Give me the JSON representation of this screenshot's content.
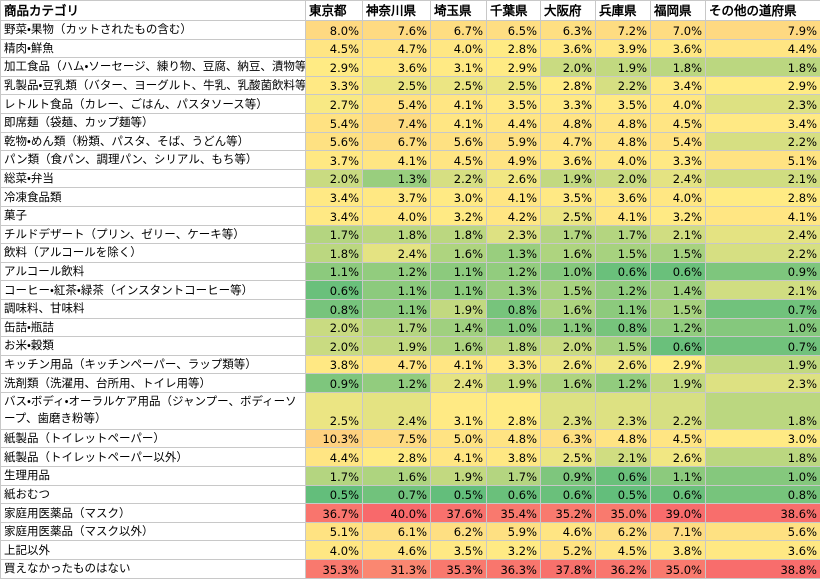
{
  "table": {
    "header": [
      "商品カテゴリ",
      "東京都",
      "神奈川県",
      "埼玉県",
      "千葉県",
      "大阪府",
      "兵庫県",
      "福岡県",
      "その他の道府県"
    ],
    "rows": [
      [
        "野菜・果物（カットされたもの含む）",
        "8.0%",
        "7.6%",
        "6.7%",
        "6.5%",
        "6.3%",
        "7.2%",
        "7.0%",
        "7.9%"
      ],
      [
        "精肉・鮮魚",
        "4.5%",
        "4.7%",
        "4.0%",
        "2.8%",
        "3.6%",
        "3.9%",
        "3.6%",
        "4.4%"
      ],
      [
        "加工食品（ハム・ソーセージ、練り物、豆腐、納豆、漬物等）",
        "2.9%",
        "3.6%",
        "3.1%",
        "2.9%",
        "2.0%",
        "1.9%",
        "1.8%",
        "1.8%"
      ],
      [
        "乳製品・豆乳類（バター、ヨーグルト、牛乳、乳酸菌飲料等）",
        "3.3%",
        "2.5%",
        "2.5%",
        "2.5%",
        "2.8%",
        "2.2%",
        "3.4%",
        "2.9%"
      ],
      [
        "レトルト食品（カレー、ごはん、パスタソース等）",
        "2.7%",
        "5.4%",
        "4.1%",
        "3.5%",
        "3.3%",
        "3.5%",
        "4.0%",
        "2.3%"
      ],
      [
        "即席麺（袋麺、カップ麺等）",
        "5.4%",
        "7.4%",
        "4.1%",
        "4.4%",
        "4.8%",
        "4.8%",
        "4.5%",
        "3.4%"
      ],
      [
        "乾物・めん類（粉類、パスタ、そば、うどん等）",
        "5.6%",
        "6.7%",
        "5.6%",
        "5.9%",
        "4.7%",
        "4.8%",
        "5.4%",
        "2.2%"
      ],
      [
        "パン類（食パン、調理パン、シリアル、もち等）",
        "3.7%",
        "4.1%",
        "4.5%",
        "4.9%",
        "3.6%",
        "4.0%",
        "3.3%",
        "5.1%"
      ],
      [
        "総菜・弁当",
        "2.0%",
        "1.3%",
        "2.2%",
        "2.6%",
        "1.9%",
        "2.0%",
        "2.4%",
        "2.1%"
      ],
      [
        "冷凍食品類",
        "3.4%",
        "3.7%",
        "3.0%",
        "4.1%",
        "3.5%",
        "3.6%",
        "4.0%",
        "2.8%"
      ],
      [
        "菓子",
        "3.4%",
        "4.0%",
        "3.2%",
        "4.2%",
        "2.5%",
        "4.1%",
        "3.2%",
        "4.1%"
      ],
      [
        "チルドデザート（プリン、ゼリー、ケーキ等）",
        "1.7%",
        "1.8%",
        "1.8%",
        "2.3%",
        "1.7%",
        "1.7%",
        "2.1%",
        "2.4%"
      ],
      [
        "飲料（アルコールを除く）",
        "1.8%",
        "2.4%",
        "1.6%",
        "1.3%",
        "1.6%",
        "1.5%",
        "1.5%",
        "2.2%"
      ],
      [
        "アルコール飲料",
        "1.1%",
        "1.2%",
        "1.1%",
        "1.2%",
        "1.0%",
        "0.6%",
        "0.6%",
        "0.9%"
      ],
      [
        "コーヒー・紅茶・緑茶（インスタントコーヒー等）",
        "0.6%",
        "1.1%",
        "1.1%",
        "1.3%",
        "1.5%",
        "1.2%",
        "1.4%",
        "2.1%"
      ],
      [
        "調味料、甘味料",
        "0.8%",
        "1.1%",
        "1.9%",
        "0.8%",
        "1.6%",
        "1.1%",
        "1.5%",
        "0.7%"
      ],
      [
        "缶詰・瓶詰",
        "2.0%",
        "1.7%",
        "1.4%",
        "1.0%",
        "1.1%",
        "0.8%",
        "1.2%",
        "1.0%"
      ],
      [
        "お米・穀類",
        "2.0%",
        "1.9%",
        "1.6%",
        "1.8%",
        "2.0%",
        "1.5%",
        "0.6%",
        "0.7%"
      ],
      [
        "キッチン用品（キッチンペーパー、ラップ類等）",
        "3.8%",
        "4.7%",
        "4.1%",
        "3.3%",
        "2.6%",
        "2.6%",
        "2.9%",
        "1.9%"
      ],
      [
        "洗剤類（洗濯用、台所用、トイレ用等）",
        "0.9%",
        "1.2%",
        "2.4%",
        "1.9%",
        "1.6%",
        "1.2%",
        "1.9%",
        "2.3%"
      ],
      [
        "バス・ボディ・オーラルケア用品（ジャンプー、ボディーソープ、歯磨き粉等）",
        "2.5%",
        "2.4%",
        "3.1%",
        "2.8%",
        "2.3%",
        "2.3%",
        "2.2%",
        "1.8%"
      ],
      [
        "紙製品（トイレットペーパー）",
        "10.3%",
        "7.5%",
        "5.0%",
        "4.8%",
        "6.3%",
        "4.8%",
        "4.5%",
        "3.0%"
      ],
      [
        "紙製品（トイレットペーパー以外）",
        "4.4%",
        "2.8%",
        "4.1%",
        "3.8%",
        "2.5%",
        "2.1%",
        "2.6%",
        "1.8%"
      ],
      [
        "生理用品",
        "1.7%",
        "1.6%",
        "1.9%",
        "1.7%",
        "0.9%",
        "0.6%",
        "1.1%",
        "1.0%"
      ],
      [
        "紙おむつ",
        "0.5%",
        "0.7%",
        "0.5%",
        "0.6%",
        "0.6%",
        "0.5%",
        "0.6%",
        "0.8%"
      ],
      [
        "家庭用医薬品（マスク）",
        "36.7%",
        "40.0%",
        "37.6%",
        "35.4%",
        "35.2%",
        "35.0%",
        "39.0%",
        "38.6%"
      ],
      [
        "家庭用医薬品（マスク以外）",
        "5.1%",
        "6.1%",
        "6.2%",
        "5.9%",
        "4.6%",
        "6.2%",
        "7.1%",
        "5.6%"
      ],
      [
        "上記以外",
        "4.0%",
        "4.6%",
        "3.5%",
        "3.2%",
        "5.2%",
        "4.5%",
        "3.8%",
        "3.6%"
      ],
      [
        "買えなかったものはない",
        "35.3%",
        "31.3%",
        "35.3%",
        "36.3%",
        "37.8%",
        "36.2%",
        "35.0%",
        "38.8%"
      ]
    ]
  }
}
